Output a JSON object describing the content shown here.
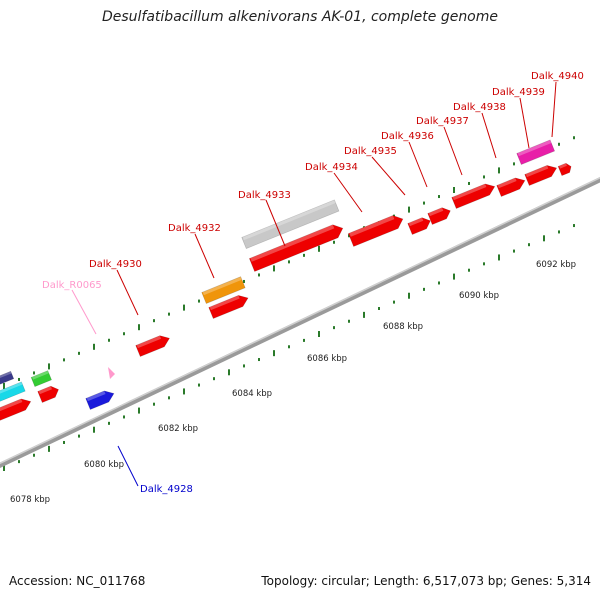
{
  "title": "Desulfatibacillum alkenivorans AK-01, complete genome",
  "footer": {
    "accession": "Accession: NC_011768",
    "summary": "Topology: circular; Length: 6,517,073 bp; Genes: 5,314"
  },
  "colors": {
    "backbone": "#8f8f8f",
    "tick": "#2a7a2a",
    "gene_red": "#ee0000",
    "gene_red_label": "#cc0000",
    "rna_label": "#ff99cc",
    "blue_label": "#0000cc"
  },
  "scale_labels": [
    "6078 kbp",
    "6080 kbp",
    "6082 kbp",
    "6084 kbp",
    "6086 kbp",
    "6088 kbp",
    "6090 kbp",
    "6092 kbp"
  ],
  "gene_labels": [
    {
      "text": "Dalk_R0065",
      "color": "#ff99cc"
    },
    {
      "text": "Dalk_4928",
      "color": "#0000cc"
    },
    {
      "text": "Dalk_4930",
      "color": "#cc0000"
    },
    {
      "text": "Dalk_4932",
      "color": "#cc0000"
    },
    {
      "text": "Dalk_4933",
      "color": "#cc0000"
    },
    {
      "text": "Dalk_4934",
      "color": "#cc0000"
    },
    {
      "text": "Dalk_4935",
      "color": "#cc0000"
    },
    {
      "text": "Dalk_4936",
      "color": "#cc0000"
    },
    {
      "text": "Dalk_4937",
      "color": "#cc0000"
    },
    {
      "text": "Dalk_4938",
      "color": "#cc0000"
    },
    {
      "text": "Dalk_4939",
      "color": "#cc0000"
    },
    {
      "text": "Dalk_4940",
      "color": "#cc0000"
    }
  ],
  "features": [
    {
      "name": "gene-navy",
      "color": "#3a3a8a"
    },
    {
      "name": "gene-cyan",
      "color": "#18d8e8"
    },
    {
      "name": "gene-green",
      "color": "#33cc33"
    },
    {
      "name": "gene-red-left",
      "color": "#ee0000"
    },
    {
      "name": "gene-red-small",
      "color": "#ee0000"
    },
    {
      "name": "gene-blue",
      "color": "#1a1adb"
    },
    {
      "name": "gene-red-4930",
      "color": "#ee0000"
    },
    {
      "name": "gene-orange",
      "color": "#f0950a"
    },
    {
      "name": "gene-red-4932",
      "color": "#ee0000"
    },
    {
      "name": "gene-grey",
      "color": "#c8c8c8"
    },
    {
      "name": "gene-red-long",
      "color": "#ee0000"
    },
    {
      "name": "gene-red-4934",
      "color": "#ee0000"
    },
    {
      "name": "gene-red-4935",
      "color": "#ee0000"
    },
    {
      "name": "gene-red-4936",
      "color": "#ee0000"
    },
    {
      "name": "gene-red-4937",
      "color": "#ee0000"
    },
    {
      "name": "gene-red-4938",
      "color": "#ee0000"
    },
    {
      "name": "gene-magenta",
      "color": "#e81ea8"
    },
    {
      "name": "gene-red-4939",
      "color": "#ee0000"
    },
    {
      "name": "gene-red-4940",
      "color": "#ee0000"
    }
  ]
}
